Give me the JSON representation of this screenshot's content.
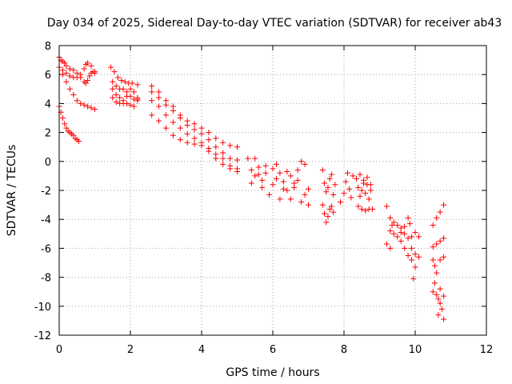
{
  "chart_data": {
    "type": "scatter",
    "title": "Day 034 of 2025, Sidereal Day-to-day VTEC variation (SDTVAR) for receiver ab43",
    "xlabel": "GPS time / hours",
    "ylabel": "SDTVAR / TECUs",
    "xlim": [
      0,
      12
    ],
    "ylim": [
      -12,
      8
    ],
    "xticks": [
      0,
      2,
      4,
      6,
      8,
      10,
      12
    ],
    "yticks": [
      -12,
      -10,
      -8,
      -6,
      -4,
      -2,
      0,
      2,
      4,
      6,
      8
    ],
    "xtick_labels": [
      "0",
      "2",
      "4",
      "6",
      "8",
      "10",
      "12"
    ],
    "ytick_labels": [
      "-12",
      "-10",
      "-8",
      "-6",
      "-4",
      "-2",
      "0",
      "2",
      "4",
      "6",
      "8"
    ],
    "grid": true,
    "marker": "+",
    "color": "#ff0000",
    "series": [
      {
        "name": "SDTVAR",
        "points": [
          [
            0.0,
            7.2
          ],
          [
            0.05,
            7.0
          ],
          [
            0.1,
            6.9
          ],
          [
            0.15,
            6.8
          ],
          [
            0.2,
            6.6
          ],
          [
            0.3,
            6.4
          ],
          [
            0.4,
            6.3
          ],
          [
            0.5,
            6.1
          ],
          [
            0.6,
            5.8
          ],
          [
            0.7,
            5.5
          ],
          [
            0.75,
            5.4
          ],
          [
            0.8,
            5.6
          ],
          [
            0.85,
            5.9
          ],
          [
            0.9,
            6.1
          ],
          [
            0.95,
            6.2
          ],
          [
            1.0,
            6.1
          ],
          [
            0.0,
            6.5
          ],
          [
            0.1,
            6.3
          ],
          [
            0.2,
            6.1
          ],
          [
            0.3,
            5.9
          ],
          [
            0.4,
            5.8
          ],
          [
            0.5,
            5.8
          ],
          [
            0.6,
            6.0
          ],
          [
            0.7,
            6.4
          ],
          [
            0.75,
            6.7
          ],
          [
            0.8,
            6.8
          ],
          [
            0.9,
            6.6
          ],
          [
            1.0,
            6.2
          ],
          [
            0.1,
            6.0
          ],
          [
            0.2,
            5.5
          ],
          [
            0.3,
            5.0
          ],
          [
            0.4,
            4.6
          ],
          [
            0.5,
            4.2
          ],
          [
            0.6,
            4.0
          ],
          [
            0.7,
            3.9
          ],
          [
            0.8,
            3.8
          ],
          [
            0.9,
            3.7
          ],
          [
            1.0,
            3.6
          ],
          [
            0.0,
            3.8
          ],
          [
            0.05,
            3.4
          ],
          [
            0.1,
            3.0
          ],
          [
            0.15,
            2.6
          ],
          [
            0.2,
            2.3
          ],
          [
            0.25,
            2.1
          ],
          [
            0.3,
            2.0
          ],
          [
            0.35,
            1.9
          ],
          [
            0.4,
            1.8
          ],
          [
            0.45,
            1.6
          ],
          [
            0.5,
            1.5
          ],
          [
            0.55,
            1.4
          ],
          [
            1.45,
            6.5
          ],
          [
            1.55,
            6.2
          ],
          [
            1.65,
            5.8
          ],
          [
            1.75,
            5.6
          ],
          [
            1.85,
            5.5
          ],
          [
            1.95,
            5.4
          ],
          [
            2.05,
            5.4
          ],
          [
            2.2,
            5.3
          ],
          [
            1.5,
            5.5
          ],
          [
            1.6,
            5.2
          ],
          [
            1.7,
            5.0
          ],
          [
            1.8,
            5.0
          ],
          [
            1.9,
            4.8
          ],
          [
            2.0,
            4.5
          ],
          [
            2.1,
            4.3
          ],
          [
            2.2,
            4.2
          ],
          [
            1.5,
            5.0
          ],
          [
            1.6,
            4.6
          ],
          [
            1.7,
            4.4
          ],
          [
            1.8,
            4.2
          ],
          [
            1.9,
            4.0
          ],
          [
            2.0,
            3.9
          ],
          [
            2.1,
            3.8
          ],
          [
            2.2,
            4.3
          ],
          [
            1.5,
            4.4
          ],
          [
            1.6,
            4.1
          ],
          [
            1.7,
            4.0
          ],
          [
            1.8,
            4.0
          ],
          [
            1.9,
            4.5
          ],
          [
            2.0,
            5.0
          ],
          [
            2.1,
            4.8
          ],
          [
            2.2,
            4.4
          ],
          [
            2.6,
            5.2
          ],
          [
            2.8,
            4.8
          ],
          [
            3.0,
            4.2
          ],
          [
            3.2,
            3.8
          ],
          [
            3.4,
            3.2
          ],
          [
            3.6,
            2.8
          ],
          [
            3.8,
            2.6
          ],
          [
            4.0,
            2.3
          ],
          [
            4.2,
            2.0
          ],
          [
            4.4,
            1.6
          ],
          [
            4.6,
            1.3
          ],
          [
            4.8,
            1.1
          ],
          [
            5.0,
            1.0
          ],
          [
            2.6,
            4.8
          ],
          [
            2.8,
            4.4
          ],
          [
            3.0,
            3.9
          ],
          [
            3.2,
            3.5
          ],
          [
            3.4,
            3.0
          ],
          [
            3.6,
            2.5
          ],
          [
            3.8,
            2.2
          ],
          [
            4.0,
            1.9
          ],
          [
            4.2,
            1.5
          ],
          [
            4.4,
            1.0
          ],
          [
            4.6,
            0.6
          ],
          [
            4.8,
            0.2
          ],
          [
            5.0,
            0.1
          ],
          [
            2.6,
            4.2
          ],
          [
            2.8,
            3.8
          ],
          [
            3.0,
            3.2
          ],
          [
            3.2,
            2.7
          ],
          [
            3.4,
            2.3
          ],
          [
            3.6,
            1.9
          ],
          [
            3.8,
            1.6
          ],
          [
            4.0,
            1.3
          ],
          [
            4.2,
            0.9
          ],
          [
            4.4,
            0.5
          ],
          [
            4.6,
            0.2
          ],
          [
            4.8,
            -0.3
          ],
          [
            5.0,
            -0.5
          ],
          [
            2.6,
            3.2
          ],
          [
            2.8,
            2.8
          ],
          [
            3.0,
            2.3
          ],
          [
            3.2,
            1.8
          ],
          [
            3.4,
            1.5
          ],
          [
            3.6,
            1.3
          ],
          [
            3.8,
            1.2
          ],
          [
            4.0,
            1.1
          ],
          [
            4.2,
            0.7
          ],
          [
            4.4,
            0.2
          ],
          [
            4.6,
            -0.2
          ],
          [
            4.8,
            -0.5
          ],
          [
            5.0,
            -0.7
          ],
          [
            5.3,
            0.2
          ],
          [
            5.4,
            -0.6
          ],
          [
            5.5,
            -1.0
          ],
          [
            5.6,
            -0.4
          ],
          [
            5.7,
            -1.3
          ],
          [
            5.8,
            -0.8
          ],
          [
            5.9,
            -2.3
          ],
          [
            6.0,
            -0.5
          ],
          [
            6.1,
            -1.2
          ],
          [
            6.2,
            -0.8
          ],
          [
            6.3,
            -1.4
          ],
          [
            6.4,
            -2.0
          ],
          [
            6.5,
            -1.0
          ],
          [
            6.6,
            -1.8
          ],
          [
            6.7,
            -1.3
          ],
          [
            6.8,
            -2.8
          ],
          [
            6.9,
            -0.2
          ],
          [
            7.0,
            -3.0
          ],
          [
            5.5,
            0.2
          ],
          [
            5.6,
            -0.9
          ],
          [
            5.8,
            -0.3
          ],
          [
            6.0,
            -1.6
          ],
          [
            6.2,
            -2.6
          ],
          [
            6.4,
            -0.7
          ],
          [
            6.6,
            -1.5
          ],
          [
            6.8,
            0.0
          ],
          [
            7.0,
            -1.9
          ],
          [
            5.4,
            -1.5
          ],
          [
            5.7,
            -1.8
          ],
          [
            6.1,
            -0.2
          ],
          [
            6.3,
            -1.9
          ],
          [
            6.5,
            -2.6
          ],
          [
            6.7,
            -0.6
          ],
          [
            6.9,
            -2.3
          ],
          [
            7.4,
            -0.6
          ],
          [
            7.45,
            -1.5
          ],
          [
            7.5,
            -2.1
          ],
          [
            7.55,
            -1.8
          ],
          [
            7.6,
            -1.2
          ],
          [
            7.65,
            -0.9
          ],
          [
            7.7,
            -2.3
          ],
          [
            7.75,
            -1.6
          ],
          [
            7.4,
            -3.0
          ],
          [
            7.45,
            -3.6
          ],
          [
            7.5,
            -4.2
          ],
          [
            7.55,
            -3.8
          ],
          [
            7.6,
            -3.3
          ],
          [
            7.65,
            -3.1
          ],
          [
            7.7,
            -3.5
          ],
          [
            7.9,
            -2.8
          ],
          [
            8.0,
            -2.2
          ],
          [
            8.05,
            -1.4
          ],
          [
            8.1,
            -0.8
          ],
          [
            8.15,
            -1.9
          ],
          [
            8.2,
            -2.5
          ],
          [
            8.25,
            -1.0
          ],
          [
            8.35,
            -1.2
          ],
          [
            8.4,
            -1.8
          ],
          [
            8.45,
            -2.4
          ],
          [
            8.5,
            -2.0
          ],
          [
            8.55,
            -1.5
          ],
          [
            8.6,
            -2.2
          ],
          [
            8.65,
            -1.6
          ],
          [
            8.7,
            -2.6
          ],
          [
            8.75,
            -2.0
          ],
          [
            8.4,
            -3.1
          ],
          [
            8.5,
            -3.3
          ],
          [
            8.6,
            -3.4
          ],
          [
            8.7,
            -3.3
          ],
          [
            8.8,
            -3.3
          ],
          [
            8.45,
            -0.9
          ],
          [
            8.55,
            -1.3
          ],
          [
            8.65,
            -1.1
          ],
          [
            8.75,
            -1.6
          ],
          [
            9.2,
            -3.1
          ],
          [
            9.3,
            -3.9
          ],
          [
            9.35,
            -4.4
          ],
          [
            9.4,
            -4.2
          ],
          [
            9.5,
            -4.4
          ],
          [
            9.6,
            -4.6
          ],
          [
            9.7,
            -5.0
          ],
          [
            9.8,
            -5.3
          ],
          [
            9.9,
            -5.2
          ],
          [
            10.0,
            -4.9
          ],
          [
            10.1,
            -5.2
          ],
          [
            9.3,
            -4.8
          ],
          [
            9.4,
            -5.0
          ],
          [
            9.5,
            -5.2
          ],
          [
            9.6,
            -5.5
          ],
          [
            9.7,
            -6.0
          ],
          [
            9.8,
            -6.5
          ],
          [
            9.9,
            -6.8
          ],
          [
            10.0,
            -6.4
          ],
          [
            10.1,
            -6.6
          ],
          [
            9.2,
            -5.7
          ],
          [
            9.3,
            -6.0
          ],
          [
            9.6,
            -4.9
          ],
          [
            9.7,
            -4.5
          ],
          [
            9.8,
            -3.9
          ],
          [
            9.85,
            -4.3
          ],
          [
            9.9,
            -6.0
          ],
          [
            9.95,
            -8.1
          ],
          [
            10.0,
            -7.3
          ],
          [
            10.5,
            -4.4
          ],
          [
            10.6,
            -3.9
          ],
          [
            10.7,
            -3.5
          ],
          [
            10.8,
            -3.0
          ],
          [
            10.5,
            -5.9
          ],
          [
            10.6,
            -5.7
          ],
          [
            10.7,
            -5.5
          ],
          [
            10.8,
            -5.3
          ],
          [
            10.8,
            -6.6
          ],
          [
            10.7,
            -6.8
          ],
          [
            10.5,
            -6.8
          ],
          [
            10.55,
            -7.2
          ],
          [
            10.6,
            -7.7
          ],
          [
            10.5,
            -9.0
          ],
          [
            10.55,
            -8.4
          ],
          [
            10.6,
            -9.2
          ],
          [
            10.65,
            -9.5
          ],
          [
            10.7,
            -9.8
          ],
          [
            10.75,
            -10.2
          ],
          [
            10.8,
            -10.9
          ],
          [
            10.7,
            -8.8
          ],
          [
            10.8,
            -9.3
          ],
          [
            10.65,
            -10.6
          ]
        ]
      }
    ]
  }
}
